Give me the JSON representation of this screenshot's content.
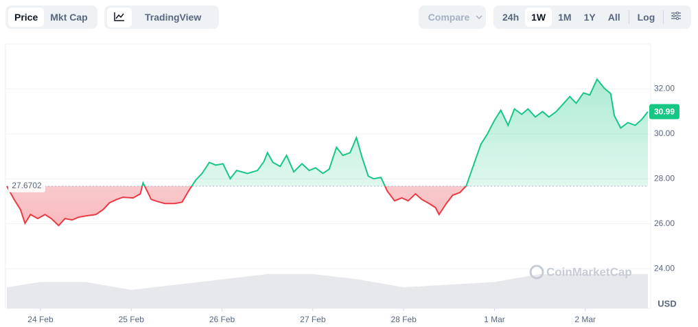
{
  "controls": {
    "view": [
      "Price",
      "Mkt Cap"
    ],
    "chart": [
      "TradingView"
    ],
    "compare": "Compare",
    "ranges": [
      "24h",
      "1W",
      "1M",
      "1Y",
      "All"
    ],
    "active_range": 1,
    "log": "Log"
  },
  "chart_data": {
    "type": "line",
    "x": [
      -0.37,
      -0.29,
      -0.22,
      -0.17,
      -0.11,
      -0.03,
      0.05,
      0.12,
      0.2,
      0.27,
      0.35,
      0.42,
      0.5,
      0.61,
      0.69,
      0.76,
      0.84,
      0.91,
      1.02,
      1.1,
      1.13,
      1.22,
      1.29,
      1.37,
      1.48,
      1.56,
      1.63,
      1.71,
      1.78,
      1.86,
      1.93,
      2.01,
      2.09,
      2.16,
      2.28,
      2.39,
      2.46,
      2.5,
      2.56,
      2.64,
      2.71,
      2.79,
      2.88,
      2.96,
      3.03,
      3.11,
      3.18,
      3.26,
      3.33,
      3.41,
      3.48,
      3.54,
      3.61,
      3.67,
      3.75,
      3.82,
      3.9,
      3.98,
      4.05,
      4.13,
      4.2,
      4.28,
      4.35,
      4.39,
      4.47,
      4.54,
      4.62,
      4.69,
      4.77,
      4.85,
      4.92,
      5.0,
      5.07,
      5.15,
      5.22,
      5.3,
      5.37,
      5.45,
      5.53,
      5.6,
      5.68,
      5.75,
      5.83,
      5.9,
      5.98,
      6.05,
      6.13,
      6.21,
      6.28,
      6.32,
      6.39,
      6.47,
      6.55,
      6.62,
      6.69
    ],
    "series": [
      {
        "name": "Price",
        "color_up": "#16c784",
        "color_down": "#ea3943",
        "values": [
          27.67,
          27.08,
          26.63,
          26.02,
          26.41,
          26.23,
          26.41,
          26.23,
          25.92,
          26.23,
          26.17,
          26.29,
          26.35,
          26.41,
          26.63,
          26.93,
          27.08,
          27.18,
          27.15,
          27.33,
          27.82,
          27.08,
          26.99,
          26.9,
          26.9,
          26.96,
          27.45,
          27.94,
          28.24,
          28.73,
          28.61,
          28.67,
          28.0,
          28.37,
          28.24,
          28.37,
          28.76,
          29.16,
          28.73,
          28.55,
          29.04,
          28.31,
          28.67,
          28.37,
          28.49,
          28.24,
          28.43,
          29.4,
          29.04,
          29.16,
          29.83,
          28.98,
          28.12,
          28.0,
          28.06,
          27.45,
          27.02,
          27.15,
          27.02,
          27.33,
          27.08,
          26.9,
          26.72,
          26.41,
          26.9,
          27.27,
          27.39,
          27.69,
          28.61,
          29.53,
          29.98,
          30.6,
          31.05,
          30.38,
          31.11,
          30.87,
          31.11,
          30.75,
          30.99,
          30.75,
          30.99,
          31.3,
          31.66,
          31.36,
          31.82,
          31.73,
          32.43,
          32.03,
          31.79,
          30.81,
          30.26,
          30.5,
          30.38,
          30.63,
          30.99
        ]
      }
    ],
    "volume": {
      "color": "#e6e8eb",
      "x": [
        -0.37,
        0,
        0.5,
        1,
        1.5,
        2,
        2.5,
        3,
        3.5,
        4,
        4.5,
        5,
        5.5,
        6,
        6.69
      ],
      "values": [
        8,
        10,
        10,
        7,
        9,
        11,
        13,
        13,
        11,
        8,
        9,
        10,
        13,
        13,
        13
      ]
    },
    "baseline": 27.6702,
    "current_price": 30.99,
    "currency": "USD",
    "watermark": "CoinMarketCap",
    "xlim": [
      -0.37,
      6.69
    ],
    "xticks": [
      {
        "value": 0,
        "label": "24 Feb"
      },
      {
        "value": 1,
        "label": "25 Feb"
      },
      {
        "value": 2,
        "label": "26 Feb"
      },
      {
        "value": 3,
        "label": "27 Feb"
      },
      {
        "value": 4,
        "label": "28 Feb"
      },
      {
        "value": 5,
        "label": "1 Mar"
      },
      {
        "value": 6,
        "label": "2 Mar"
      }
    ],
    "ylim": [
      22.23,
      34
    ],
    "yticks": [
      {
        "value": 24,
        "label": "24.00"
      },
      {
        "value": 26,
        "label": "26.00"
      },
      {
        "value": 28,
        "label": "28.00"
      },
      {
        "value": 30,
        "label": "30.00"
      },
      {
        "value": 32,
        "label": "32.00"
      }
    ],
    "y2lim": [
      0,
      100
    ],
    "grid": true
  }
}
